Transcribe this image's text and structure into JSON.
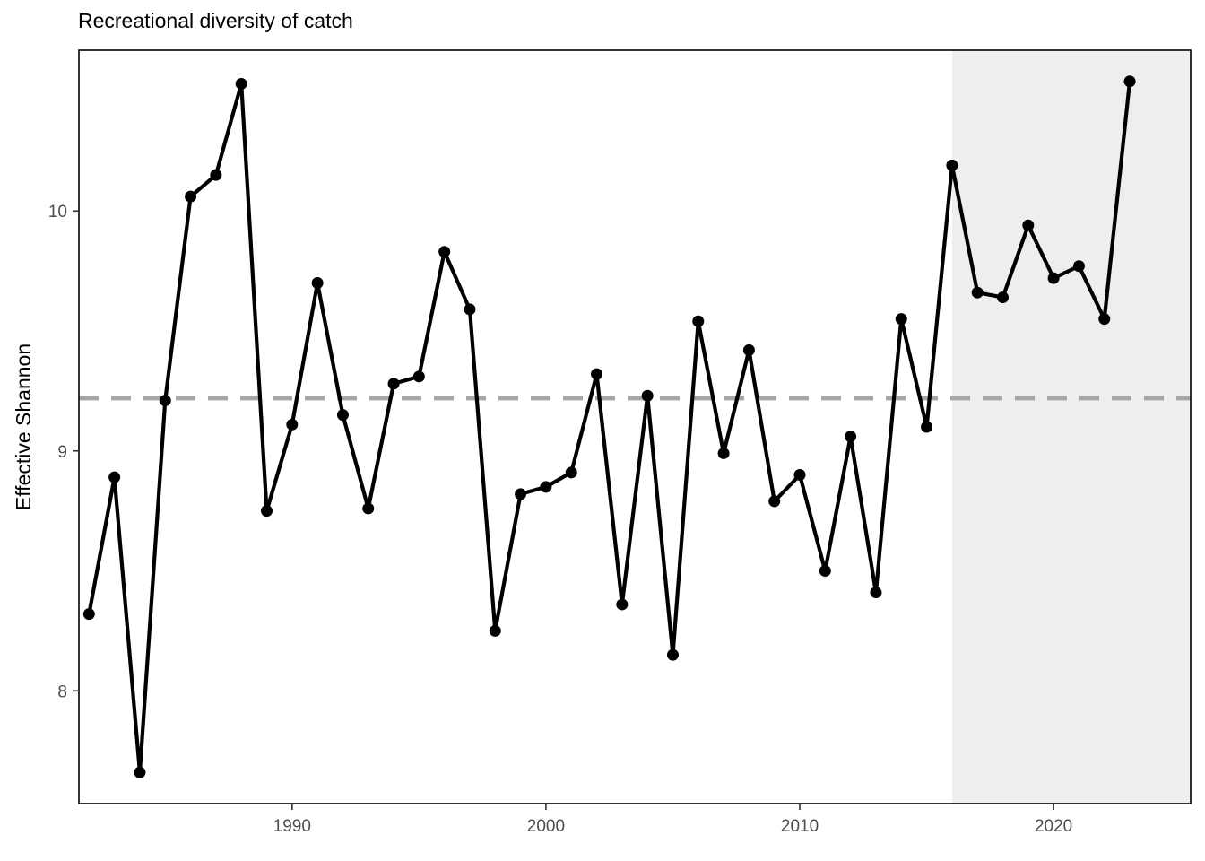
{
  "chart_data": {
    "type": "line",
    "title": "Recreational diversity of catch",
    "xlabel": "",
    "ylabel": "Effective Shannon",
    "xlim": [
      1981.6,
      2025.4
    ],
    "ylim": [
      7.53,
      10.67
    ],
    "xticks": [
      1990,
      2000,
      2010,
      2020
    ],
    "yticks": [
      8,
      9,
      10
    ],
    "grid": false,
    "reference_line": {
      "y": 9.22,
      "style": "dashed",
      "color": "#a6a6a6"
    },
    "shaded_region": {
      "x_start": 2016,
      "x_end": 2025.4,
      "color": "#eeeeee"
    },
    "series": [
      {
        "color": "#000000",
        "x": [
          1982,
          1983,
          1984,
          1985,
          1986,
          1987,
          1988,
          1989,
          1990,
          1991,
          1992,
          1993,
          1994,
          1995,
          1996,
          1997,
          1998,
          1999,
          2000,
          2001,
          2002,
          2003,
          2004,
          2005,
          2006,
          2007,
          2008,
          2009,
          2010,
          2011,
          2012,
          2013,
          2014,
          2015,
          2016,
          2017,
          2018,
          2019,
          2020,
          2021,
          2022,
          2023
        ],
        "y": [
          8.32,
          8.89,
          7.66,
          9.21,
          10.06,
          10.15,
          10.53,
          8.75,
          9.11,
          9.7,
          9.15,
          8.76,
          9.28,
          9.31,
          9.83,
          9.59,
          8.25,
          8.82,
          8.85,
          8.91,
          9.32,
          8.36,
          9.23,
          8.15,
          9.54,
          8.99,
          9.42,
          8.79,
          8.9,
          8.5,
          9.06,
          8.41,
          9.55,
          9.1,
          10.19,
          9.66,
          9.64,
          9.94,
          9.72,
          9.77,
          9.55,
          10.54
        ]
      }
    ]
  }
}
